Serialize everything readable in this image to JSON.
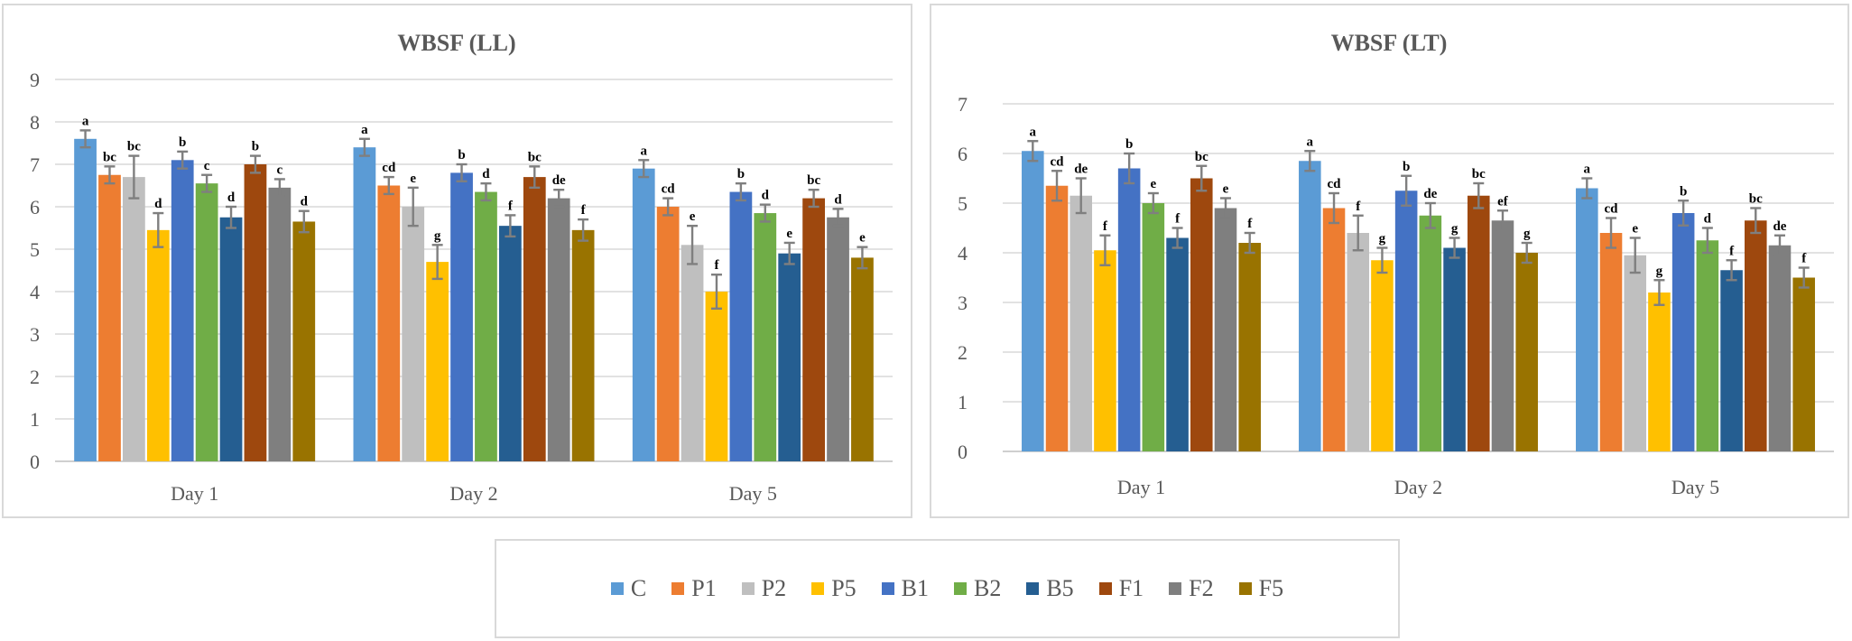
{
  "chart_data": [
    {
      "type": "bar",
      "title": "WBSF (LL)",
      "categories": [
        "Day 1",
        "Day 2",
        "Day 5"
      ],
      "ylim": [
        0,
        9
      ],
      "yticks": [
        0,
        1,
        2,
        3,
        4,
        5,
        6,
        7,
        8,
        9
      ],
      "grid": true,
      "series": [
        {
          "name": "C",
          "values": [
            7.6,
            7.4,
            6.9
          ],
          "errors": [
            0.2,
            0.2,
            0.2
          ],
          "labels": [
            "a",
            "a",
            "a"
          ]
        },
        {
          "name": "P1",
          "values": [
            6.75,
            6.5,
            6.0
          ],
          "errors": [
            0.2,
            0.2,
            0.2
          ],
          "labels": [
            "bc",
            "cd",
            "cd"
          ]
        },
        {
          "name": "P2",
          "values": [
            6.7,
            6.0,
            5.1
          ],
          "errors": [
            0.5,
            0.45,
            0.45
          ],
          "labels": [
            "bc",
            "e",
            "e"
          ]
        },
        {
          "name": "P5",
          "values": [
            5.45,
            4.7,
            4.0
          ],
          "errors": [
            0.4,
            0.4,
            0.4
          ],
          "labels": [
            "d",
            "g",
            "f"
          ]
        },
        {
          "name": "B1",
          "values": [
            7.1,
            6.8,
            6.35
          ],
          "errors": [
            0.2,
            0.2,
            0.2
          ],
          "labels": [
            "b",
            "b",
            "b"
          ]
        },
        {
          "name": "B2",
          "values": [
            6.55,
            6.35,
            5.85
          ],
          "errors": [
            0.2,
            0.2,
            0.2
          ],
          "labels": [
            "c",
            "d",
            "d"
          ]
        },
        {
          "name": "B5",
          "values": [
            5.75,
            5.55,
            4.9
          ],
          "errors": [
            0.25,
            0.25,
            0.25
          ],
          "labels": [
            "d",
            "f",
            "e"
          ]
        },
        {
          "name": "F1",
          "values": [
            7.0,
            6.7,
            6.2
          ],
          "errors": [
            0.2,
            0.25,
            0.2
          ],
          "labels": [
            "b",
            "bc",
            "bc"
          ]
        },
        {
          "name": "F2",
          "values": [
            6.45,
            6.2,
            5.75
          ],
          "errors": [
            0.2,
            0.2,
            0.2
          ],
          "labels": [
            "c",
            "de",
            "d"
          ]
        },
        {
          "name": "F5",
          "values": [
            5.65,
            5.45,
            4.8
          ],
          "errors": [
            0.25,
            0.25,
            0.25
          ],
          "labels": [
            "d",
            "f",
            "e"
          ]
        }
      ]
    },
    {
      "type": "bar",
      "title": "WBSF (LT)",
      "categories": [
        "Day 1",
        "Day 2",
        "Day 5"
      ],
      "ylim": [
        0,
        7
      ],
      "yticks": [
        0,
        1,
        2,
        3,
        4,
        5,
        6,
        7
      ],
      "grid": true,
      "series": [
        {
          "name": "C",
          "values": [
            6.05,
            5.85,
            5.3
          ],
          "errors": [
            0.2,
            0.2,
            0.2
          ],
          "labels": [
            "a",
            "a",
            "a"
          ]
        },
        {
          "name": "P1",
          "values": [
            5.35,
            4.9,
            4.4
          ],
          "errors": [
            0.3,
            0.3,
            0.3
          ],
          "labels": [
            "cd",
            "cd",
            "cd"
          ]
        },
        {
          "name": "P2",
          "values": [
            5.15,
            4.4,
            3.95
          ],
          "errors": [
            0.35,
            0.35,
            0.35
          ],
          "labels": [
            "de",
            "f",
            "e"
          ]
        },
        {
          "name": "P5",
          "values": [
            4.05,
            3.85,
            3.2
          ],
          "errors": [
            0.3,
            0.25,
            0.25
          ],
          "labels": [
            "f",
            "g",
            "g"
          ]
        },
        {
          "name": "B1",
          "values": [
            5.7,
            5.25,
            4.8
          ],
          "errors": [
            0.3,
            0.3,
            0.25
          ],
          "labels": [
            "b",
            "b",
            "b"
          ]
        },
        {
          "name": "B2",
          "values": [
            5.0,
            4.75,
            4.25
          ],
          "errors": [
            0.2,
            0.25,
            0.25
          ],
          "labels": [
            "e",
            "de",
            "d"
          ]
        },
        {
          "name": "B5",
          "values": [
            4.3,
            4.1,
            3.65
          ],
          "errors": [
            0.2,
            0.2,
            0.2
          ],
          "labels": [
            "f",
            "g",
            "f"
          ]
        },
        {
          "name": "F1",
          "values": [
            5.5,
            5.15,
            4.65
          ],
          "errors": [
            0.25,
            0.25,
            0.25
          ],
          "labels": [
            "bc",
            "bc",
            "bc"
          ]
        },
        {
          "name": "F2",
          "values": [
            4.9,
            4.65,
            4.15
          ],
          "errors": [
            0.2,
            0.2,
            0.2
          ],
          "labels": [
            "e",
            "ef",
            "de"
          ]
        },
        {
          "name": "F5",
          "values": [
            4.2,
            4.0,
            3.5
          ],
          "errors": [
            0.2,
            0.2,
            0.2
          ],
          "labels": [
            "f",
            "g",
            "f"
          ]
        }
      ]
    }
  ],
  "legend": {
    "items": [
      {
        "name": "C",
        "color": "#5b9bd5"
      },
      {
        "name": "P1",
        "color": "#ed7d31"
      },
      {
        "name": "P2",
        "color": "#bfbfbf"
      },
      {
        "name": "P5",
        "color": "#ffc000"
      },
      {
        "name": "B1",
        "color": "#4472c4"
      },
      {
        "name": "B2",
        "color": "#70ad47"
      },
      {
        "name": "B5",
        "color": "#255e91"
      },
      {
        "name": "F1",
        "color": "#9e480e"
      },
      {
        "name": "F2",
        "color": "#7f7f7f"
      },
      {
        "name": "F5",
        "color": "#997300"
      }
    ]
  }
}
